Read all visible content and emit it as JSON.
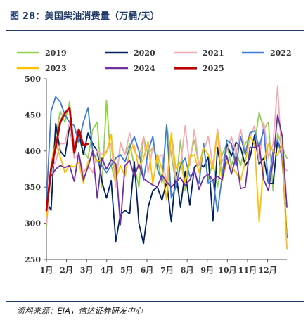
{
  "header": {
    "title": "图 28：美国柴油消费量（万桶/天）"
  },
  "footer": {
    "source": "资料来源：EIA，信达证券研发中心"
  },
  "chart_data": {
    "type": "line",
    "title": "图 28：美国柴油消费量（万桶/天）",
    "xlabel": "",
    "ylabel": "",
    "ylim": [
      250,
      500
    ],
    "yticks": [
      250,
      300,
      350,
      400,
      450,
      500
    ],
    "xticklabels": [
      "1月",
      "2月",
      "3月",
      "4月",
      "5月",
      "6月",
      "7月",
      "8月",
      "9月",
      "10月",
      "11月",
      "12月"
    ],
    "xlim_weeks": [
      1,
      53
    ],
    "legend_position": "top",
    "grid": false,
    "series": [
      {
        "name": "2019",
        "color": "#92d050",
        "values": [
          295,
          380,
          420,
          455,
          440,
          468,
          395,
          420,
          400,
          390,
          430,
          440,
          350,
          470,
          380,
          355,
          410,
          395,
          410,
          380,
          350,
          420,
          395,
          405,
          390,
          355,
          435,
          395,
          355,
          415,
          345,
          390,
          415,
          380,
          405,
          360,
          385,
          350,
          395,
          410,
          380,
          400,
          380,
          410,
          420,
          410,
          453,
          430,
          440,
          345,
          425,
          405,
          390
        ]
      },
      {
        "name": "2020",
        "color": "#002060",
        "values": [
          330,
          318,
          438,
          400,
          392,
          435,
          395,
          425,
          395,
          425,
          410,
          400,
          358,
          335,
          359,
          275,
          312,
          318,
          313,
          385,
          300,
          272,
          322,
          345,
          350,
          332,
          358,
          302,
          370,
          322,
          372,
          325,
          378,
          383,
          378,
          392,
          303,
          405,
          365,
          410,
          393,
          412,
          405,
          380,
          390,
          422,
          382,
          390,
          355,
          355,
          415,
          395,
          280
        ]
      },
      {
        "name": "2021",
        "color": "#f4aab0",
        "values": [
          300,
          375,
          385,
          410,
          410,
          440,
          390,
          395,
          370,
          380,
          370,
          400,
          395,
          400,
          410,
          350,
          412,
          395,
          425,
          400,
          390,
          420,
          370,
          405,
          390,
          395,
          355,
          420,
          360,
          380,
          435,
          380,
          430,
          380,
          400,
          420,
          380,
          430,
          385,
          400,
          420,
          395,
          430,
          400,
          420,
          435,
          385,
          440,
          390,
          410,
          490,
          380,
          373
        ]
      },
      {
        "name": "2022",
        "color": "#3a7bdb",
        "values": [
          330,
          455,
          475,
          468,
          450,
          440,
          435,
          412,
          440,
          460,
          400,
          385,
          380,
          370,
          380,
          390,
          395,
          385,
          405,
          420,
          400,
          360,
          400,
          420,
          375,
          358,
          437,
          335,
          350,
          380,
          390,
          365,
          370,
          355,
          410,
          355,
          360,
          316,
          365,
          415,
          410,
          380,
          420,
          395,
          425,
          428,
          405,
          430,
          355,
          400,
          415,
          390,
          280
        ]
      },
      {
        "name": "2023",
        "color": "#ffc000",
        "values": [
          310,
          380,
          410,
          392,
          370,
          380,
          378,
          385,
          355,
          385,
          395,
          385,
          390,
          398,
          423,
          360,
          380,
          365,
          400,
          408,
          375,
          390,
          413,
          355,
          395,
          375,
          332,
          425,
          375,
          385,
          355,
          392,
          395,
          370,
          405,
          395,
          375,
          425,
          358,
          385,
          378,
          370,
          360,
          385,
          420,
          410,
          302,
          385,
          410,
          400,
          394,
          410,
          265
        ]
      },
      {
        "name": "2024",
        "color": "#7030a0",
        "values": [
          320,
          365,
          375,
          380,
          377,
          380,
          358,
          398,
          360,
          378,
          400,
          335,
          390,
          375,
          388,
          382,
          298,
          380,
          387,
          365,
          382,
          362,
          357,
          353,
          350,
          367,
          357,
          350,
          357,
          363,
          352,
          360,
          375,
          347,
          363,
          368,
          360,
          365,
          360,
          393,
          368,
          393,
          348,
          350,
          405,
          405,
          408,
          360,
          345,
          385,
          450,
          420,
          322
        ]
      },
      {
        "name": "2025",
        "color": "#c00000",
        "values": [
          318,
          375,
          405,
          440,
          452,
          460,
          398,
          430,
          408,
          410
        ]
      }
    ]
  }
}
